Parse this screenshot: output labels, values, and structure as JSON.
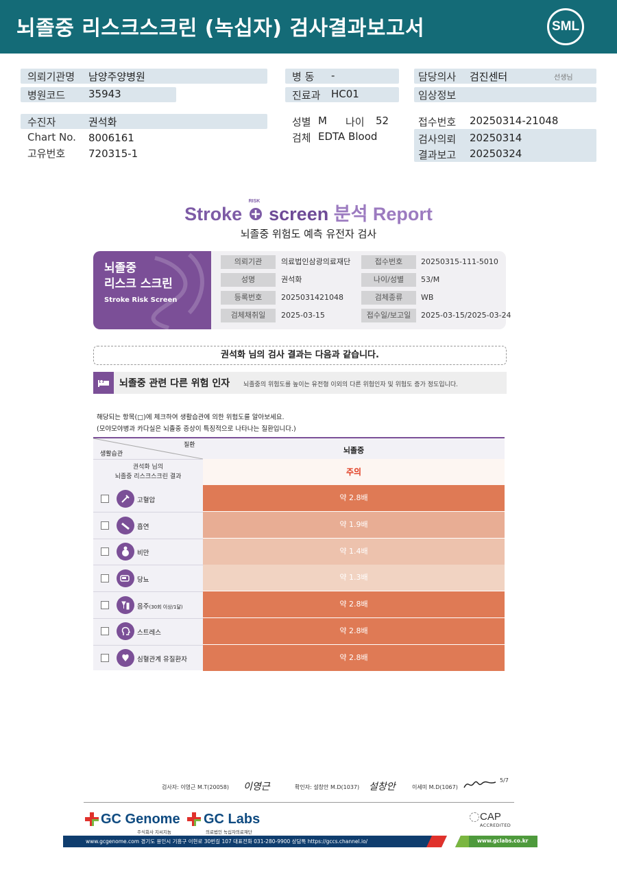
{
  "header": {
    "title": "뇌졸중 리스크스크린 (녹십자) 검사결과보고서",
    "logo": "SML"
  },
  "info": {
    "institution_label": "의뢰기관명",
    "institution": "남양주양병원",
    "hospital_code_label": "병원코드",
    "hospital_code": "35943",
    "patient_label": "수진자",
    "patient": "권석화",
    "chart_label": "Chart No.",
    "chart": "8006161",
    "unique_label": "고유번호",
    "unique": "720315-1",
    "ward_label": "병 동",
    "ward": "-",
    "dept_label": "진료과",
    "dept": "HC01",
    "sex_label": "성별",
    "sex": "M",
    "age_label": "나이",
    "age": "52",
    "specimen_label": "검체",
    "specimen": "EDTA Blood",
    "doctor_label": "담당의사",
    "doctor": "검진센터",
    "doctor_suffix": "선생님",
    "clinical_label": "임상정보",
    "receipt_label": "접수번호",
    "receipt": "20250314-21048",
    "request_label": "검사의뢰",
    "request": "20250314",
    "report_label": "결과보고",
    "report": "20250324"
  },
  "report": {
    "title_a": "Stroke",
    "title_risk": "RISK",
    "title_b": "screen",
    "title_c": "분석 Report",
    "subtitle": "뇌졸중 위험도 예측 유전자 검사"
  },
  "card": {
    "title_line1": "뇌졸중",
    "title_line2": "리스크 스크린",
    "title_en": "Stroke Risk Screen",
    "fields": [
      {
        "label": "의뢰기관",
        "value": "의료법인삼광의료재단"
      },
      {
        "label": "접수번호",
        "value": "20250315-111-5010"
      },
      {
        "label": "성명",
        "value": "권석화"
      },
      {
        "label": "나이/성별",
        "value": "53/M"
      },
      {
        "label": "등록번호",
        "value": "2025031421048"
      },
      {
        "label": "검체종류",
        "value": "WB"
      },
      {
        "label": "검체채취일",
        "value": "2025-03-15"
      },
      {
        "label": "접수일/보고일",
        "value": "2025-03-15/2025-03-24"
      }
    ]
  },
  "notice": "권석화 님의 검사 결과는 다음과 같습니다.",
  "section": {
    "title": "뇌졸중 관련 다른 위험 인자",
    "desc": "뇌졸중의 위험도를 높이는 유전형 이외의 다른 위험인자 및 위험도 증가 정도입니다.",
    "note1": "해당되는 항목(□)에 체크하여 생활습관에 의한 위험도를 알아보세요.",
    "note2": "(모야모야병과 카다실은 뇌졸중 증상이 특징적으로 나타나는 질환입니다.)"
  },
  "table": {
    "corner_top": "질환",
    "corner_bottom": "생활습관",
    "disease": "뇌졸중",
    "result_label_line1": "권석화 님의",
    "result_label_line2": "뇌졸중 리스크스크린 결과",
    "result": "주의",
    "rows": [
      {
        "label": "고혈압",
        "sub": "",
        "value": "약 2.8배",
        "color": "#df7a55",
        "icon": "syringe-icon"
      },
      {
        "label": "흡연",
        "sub": "",
        "value": "약 1.9배",
        "color": "#e8ad94",
        "icon": "cigarette-icon"
      },
      {
        "label": "비만",
        "sub": "",
        "value": "약 1.4배",
        "color": "#edc2ad",
        "icon": "person-icon"
      },
      {
        "label": "당뇨",
        "sub": "",
        "value": "약 1.3배",
        "color": "#f1d3c2",
        "icon": "glucose-meter-icon"
      },
      {
        "label": "음주",
        "sub": "(30회 이상/1달)",
        "value": "약 2.8배",
        "color": "#df7a55",
        "icon": "drink-icon"
      },
      {
        "label": "스트레스",
        "sub": "",
        "value": "약 2.8배",
        "color": "#df7a55",
        "icon": "head-stress-icon"
      },
      {
        "label": "심혈관계 유질환자",
        "sub": "",
        "value": "약 2.8배",
        "color": "#df7a55",
        "icon": "heart-icon"
      }
    ]
  },
  "signatures": {
    "examiner": "검사자: 이영근 M.T(20058)",
    "examiner_sig": "이영근",
    "verifier": "확인자: 설창안 M.D(1037)",
    "verifier_sig": "설창안",
    "third": "이세미 M.D(1067)",
    "page": "5/7"
  },
  "footer": {
    "gc_genome": "GC Genome",
    "gc_genome_sub": "주식회사 지씨지놈",
    "gc_labs": "GC Labs",
    "gc_labs_sub": "의료법인 녹십자의료재단",
    "cap": "CAP",
    "cap_sub": "ACCREDITED",
    "bar_text": "www.gcgenome.com 경기도 용인시 기흥구 이현로 30번길 107 대표전화 031-280-9900 상담톡 https://gccs.channel.io/",
    "bar_url": "www.gclabs.co.kr"
  }
}
